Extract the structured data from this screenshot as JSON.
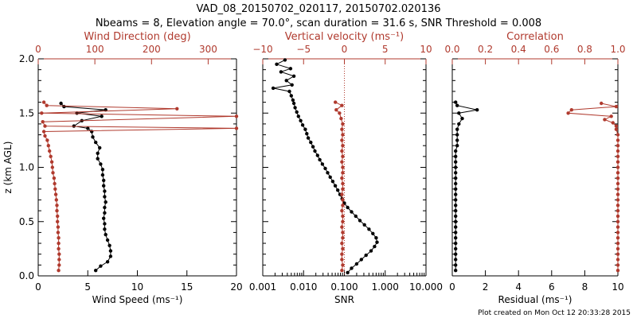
{
  "title_line1": "VAD_08_20150702_020117, 20150702.020136",
  "title_line2": "Nbeams = 8, Elevation angle = 70.0°, scan duration = 31.6 s, SNR Threshold = 0.008",
  "footer": "Plot created on Mon Oct 12 20:33:28 2015",
  "colors": {
    "primary": "#000000",
    "secondary": "#b03a2e"
  },
  "chart_data": [
    {
      "type": "line",
      "panel": "wind",
      "ylabel": "z (km AGL)",
      "ylim": [
        0.0,
        2.0
      ],
      "yticks": [
        "0.0",
        "0.5",
        "1.0",
        "1.5",
        "2.0"
      ],
      "bottom_axis": {
        "label": "Wind Speed (ms⁻¹)",
        "range": [
          0,
          20
        ],
        "ticks": [
          "0",
          "5",
          "10",
          "15",
          "20"
        ]
      },
      "top_axis": {
        "label": "Wind Direction (deg)",
        "range": [
          0,
          350
        ],
        "ticks": [
          "0",
          "100",
          "200",
          "300"
        ]
      },
      "series": [
        {
          "name": "Wind Speed",
          "axis": "bottom",
          "color": "#000000",
          "points": [
            [
              5.8,
              0.05
            ],
            [
              6.3,
              0.09
            ],
            [
              7.0,
              0.13
            ],
            [
              7.3,
              0.18
            ],
            [
              7.3,
              0.23
            ],
            [
              7.2,
              0.28
            ],
            [
              7.0,
              0.33
            ],
            [
              6.8,
              0.38
            ],
            [
              6.7,
              0.43
            ],
            [
              6.7,
              0.48
            ],
            [
              6.6,
              0.53
            ],
            [
              6.7,
              0.58
            ],
            [
              6.7,
              0.63
            ],
            [
              6.8,
              0.68
            ],
            [
              6.7,
              0.73
            ],
            [
              6.7,
              0.78
            ],
            [
              6.6,
              0.83
            ],
            [
              6.6,
              0.88
            ],
            [
              6.5,
              0.93
            ],
            [
              6.5,
              0.98
            ],
            [
              6.3,
              1.03
            ],
            [
              6.0,
              1.08
            ],
            [
              6.0,
              1.13
            ],
            [
              6.2,
              1.18
            ],
            [
              5.8,
              1.23
            ],
            [
              5.5,
              1.28
            ],
            [
              5.4,
              1.33
            ],
            [
              5.0,
              1.36
            ],
            [
              3.6,
              1.38
            ],
            [
              4.4,
              1.43
            ],
            [
              6.4,
              1.47
            ],
            [
              3.9,
              1.5
            ],
            [
              6.8,
              1.53
            ],
            [
              2.6,
              1.56
            ],
            [
              2.3,
              1.59
            ]
          ]
        },
        {
          "name": "Wind Direction",
          "axis": "top",
          "color": "#b03a2e",
          "points": [
            [
              36,
              0.05
            ],
            [
              37,
              0.1
            ],
            [
              37,
              0.15
            ],
            [
              37,
              0.2
            ],
            [
              36,
              0.25
            ],
            [
              36,
              0.3
            ],
            [
              36,
              0.35
            ],
            [
              35,
              0.4
            ],
            [
              35,
              0.45
            ],
            [
              34,
              0.5
            ],
            [
              34,
              0.55
            ],
            [
              33,
              0.6
            ],
            [
              33,
              0.65
            ],
            [
              32,
              0.7
            ],
            [
              31,
              0.75
            ],
            [
              30,
              0.8
            ],
            [
              29,
              0.85
            ],
            [
              28,
              0.9
            ],
            [
              26,
              0.95
            ],
            [
              25,
              1.0
            ],
            [
              24,
              1.05
            ],
            [
              22,
              1.1
            ],
            [
              20,
              1.15
            ],
            [
              18,
              1.2
            ],
            [
              16,
              1.25
            ],
            [
              12,
              1.29
            ],
            [
              10,
              1.33
            ],
            [
              350,
              1.36
            ],
            [
              12,
              1.38
            ],
            [
              8,
              1.42
            ],
            [
              350,
              1.47
            ],
            [
              6,
              1.5
            ],
            [
              245,
              1.54
            ],
            [
              15,
              1.57
            ],
            [
              10,
              1.6
            ]
          ]
        }
      ]
    },
    {
      "type": "line",
      "panel": "vertical",
      "ylim": [
        0.0,
        2.0
      ],
      "bottom_axis": {
        "label": "SNR",
        "scale": "log",
        "range": [
          0.001,
          10.0
        ],
        "ticks": [
          "0.001",
          "0.010",
          "0.100",
          "1.000",
          "10.000"
        ]
      },
      "top_axis": {
        "label": "Vertical velocity (ms⁻¹)",
        "range": [
          -10,
          10
        ],
        "ticks": [
          "−10",
          "−5",
          "0",
          "5",
          "10"
        ]
      },
      "series": [
        {
          "name": "SNR",
          "axis": "bottom",
          "color": "#000000",
          "points": [
            [
              0.12,
              0.03
            ],
            [
              0.15,
              0.07
            ],
            [
              0.2,
              0.11
            ],
            [
              0.26,
              0.15
            ],
            [
              0.34,
              0.19
            ],
            [
              0.45,
              0.23
            ],
            [
              0.55,
              0.27
            ],
            [
              0.63,
              0.31
            ],
            [
              0.6,
              0.35
            ],
            [
              0.5,
              0.39
            ],
            [
              0.4,
              0.43
            ],
            [
              0.31,
              0.47
            ],
            [
              0.24,
              0.51
            ],
            [
              0.19,
              0.55
            ],
            [
              0.15,
              0.59
            ],
            [
              0.12,
              0.63
            ],
            [
              0.1,
              0.67
            ],
            [
              0.088,
              0.71
            ],
            [
              0.078,
              0.75
            ],
            [
              0.069,
              0.79
            ],
            [
              0.06,
              0.83
            ],
            [
              0.052,
              0.87
            ],
            [
              0.045,
              0.91
            ],
            [
              0.039,
              0.95
            ],
            [
              0.034,
              0.99
            ],
            [
              0.029,
              1.03
            ],
            [
              0.025,
              1.07
            ],
            [
              0.022,
              1.11
            ],
            [
              0.019,
              1.15
            ],
            [
              0.017,
              1.19
            ],
            [
              0.015,
              1.23
            ],
            [
              0.013,
              1.27
            ],
            [
              0.012,
              1.31
            ],
            [
              0.011,
              1.35
            ],
            [
              0.0095,
              1.39
            ],
            [
              0.0085,
              1.43
            ],
            [
              0.0075,
              1.47
            ],
            [
              0.0068,
              1.51
            ],
            [
              0.0062,
              1.55
            ],
            [
              0.0058,
              1.59
            ],
            [
              0.0055,
              1.62
            ],
            [
              0.005,
              1.66
            ],
            [
              0.0045,
              1.7
            ],
            [
              0.0018,
              1.73
            ],
            [
              0.0052,
              1.76
            ],
            [
              0.0038,
              1.8
            ],
            [
              0.0058,
              1.84
            ],
            [
              0.0028,
              1.88
            ],
            [
              0.0048,
              1.91
            ],
            [
              0.0022,
              1.95
            ],
            [
              0.0035,
              1.99
            ]
          ]
        },
        {
          "name": "Vertical velocity",
          "axis": "top",
          "color": "#b03a2e",
          "points": [
            [
              -0.3,
              0.05
            ],
            [
              -0.2,
              0.1
            ],
            [
              -0.3,
              0.15
            ],
            [
              -0.3,
              0.2
            ],
            [
              -0.2,
              0.25
            ],
            [
              -0.3,
              0.3
            ],
            [
              -0.2,
              0.35
            ],
            [
              -0.2,
              0.4
            ],
            [
              -0.3,
              0.45
            ],
            [
              -0.2,
              0.5
            ],
            [
              -0.2,
              0.55
            ],
            [
              -0.3,
              0.6
            ],
            [
              -0.2,
              0.65
            ],
            [
              -0.2,
              0.7
            ],
            [
              -0.3,
              0.75
            ],
            [
              -0.2,
              0.8
            ],
            [
              -0.2,
              0.85
            ],
            [
              -0.3,
              0.9
            ],
            [
              -0.2,
              0.95
            ],
            [
              -0.2,
              1.0
            ],
            [
              -0.3,
              1.05
            ],
            [
              -0.2,
              1.1
            ],
            [
              -0.3,
              1.15
            ],
            [
              -0.2,
              1.2
            ],
            [
              -0.3,
              1.25
            ],
            [
              -0.2,
              1.3
            ],
            [
              -0.3,
              1.35
            ],
            [
              -0.2,
              1.4
            ],
            [
              -0.4,
              1.45
            ],
            [
              -0.6,
              1.5
            ],
            [
              -1.0,
              1.53
            ],
            [
              -0.3,
              1.57
            ],
            [
              -1.1,
              1.6
            ]
          ]
        }
      ],
      "reference_line": {
        "axis": "top",
        "value": 0,
        "style": "dotted",
        "color": "#b03a2e"
      }
    },
    {
      "type": "line",
      "panel": "correlation",
      "ylim": [
        0.0,
        2.0
      ],
      "bottom_axis": {
        "label": "Residual (ms⁻¹)",
        "range": [
          0,
          10
        ],
        "ticks": [
          "0",
          "2",
          "4",
          "6",
          "8",
          "10"
        ]
      },
      "top_axis": {
        "label": "Correlation",
        "range": [
          0.0,
          1.0
        ],
        "ticks": [
          "0.0",
          "0.2",
          "0.4",
          "0.6",
          "0.8",
          "1.0"
        ]
      },
      "series": [
        {
          "name": "Residual",
          "axis": "bottom",
          "color": "#000000",
          "points": [
            [
              0.2,
              0.05
            ],
            [
              0.2,
              0.1
            ],
            [
              0.2,
              0.15
            ],
            [
              0.2,
              0.2
            ],
            [
              0.2,
              0.25
            ],
            [
              0.2,
              0.3
            ],
            [
              0.2,
              0.35
            ],
            [
              0.2,
              0.4
            ],
            [
              0.2,
              0.45
            ],
            [
              0.2,
              0.5
            ],
            [
              0.2,
              0.55
            ],
            [
              0.2,
              0.6
            ],
            [
              0.2,
              0.65
            ],
            [
              0.2,
              0.7
            ],
            [
              0.2,
              0.75
            ],
            [
              0.2,
              0.8
            ],
            [
              0.2,
              0.85
            ],
            [
              0.2,
              0.9
            ],
            [
              0.2,
              0.95
            ],
            [
              0.2,
              1.0
            ],
            [
              0.2,
              1.05
            ],
            [
              0.2,
              1.1
            ],
            [
              0.2,
              1.15
            ],
            [
              0.3,
              1.2
            ],
            [
              0.3,
              1.25
            ],
            [
              0.3,
              1.3
            ],
            [
              0.3,
              1.35
            ],
            [
              0.4,
              1.4
            ],
            [
              0.6,
              1.45
            ],
            [
              0.4,
              1.5
            ],
            [
              1.5,
              1.53
            ],
            [
              0.3,
              1.57
            ],
            [
              0.2,
              1.6
            ]
          ]
        },
        {
          "name": "Correlation",
          "axis": "top",
          "color": "#b03a2e",
          "points": [
            [
              1.0,
              0.05
            ],
            [
              1.0,
              0.1
            ],
            [
              1.0,
              0.15
            ],
            [
              1.0,
              0.2
            ],
            [
              1.0,
              0.25
            ],
            [
              1.0,
              0.3
            ],
            [
              1.0,
              0.35
            ],
            [
              1.0,
              0.4
            ],
            [
              1.0,
              0.45
            ],
            [
              1.0,
              0.5
            ],
            [
              1.0,
              0.55
            ],
            [
              1.0,
              0.6
            ],
            [
              1.0,
              0.65
            ],
            [
              1.0,
              0.7
            ],
            [
              1.0,
              0.75
            ],
            [
              1.0,
              0.8
            ],
            [
              1.0,
              0.85
            ],
            [
              1.0,
              0.9
            ],
            [
              1.0,
              0.95
            ],
            [
              1.0,
              1.0
            ],
            [
              1.0,
              1.05
            ],
            [
              1.0,
              1.1
            ],
            [
              1.0,
              1.15
            ],
            [
              1.0,
              1.2
            ],
            [
              1.0,
              1.25
            ],
            [
              1.0,
              1.3
            ],
            [
              0.99,
              1.35
            ],
            [
              0.99,
              1.38
            ],
            [
              0.97,
              1.41
            ],
            [
              0.92,
              1.44
            ],
            [
              0.96,
              1.47
            ],
            [
              0.7,
              1.5
            ],
            [
              0.72,
              1.53
            ],
            [
              0.99,
              1.56
            ],
            [
              0.9,
              1.59
            ]
          ]
        }
      ]
    }
  ]
}
